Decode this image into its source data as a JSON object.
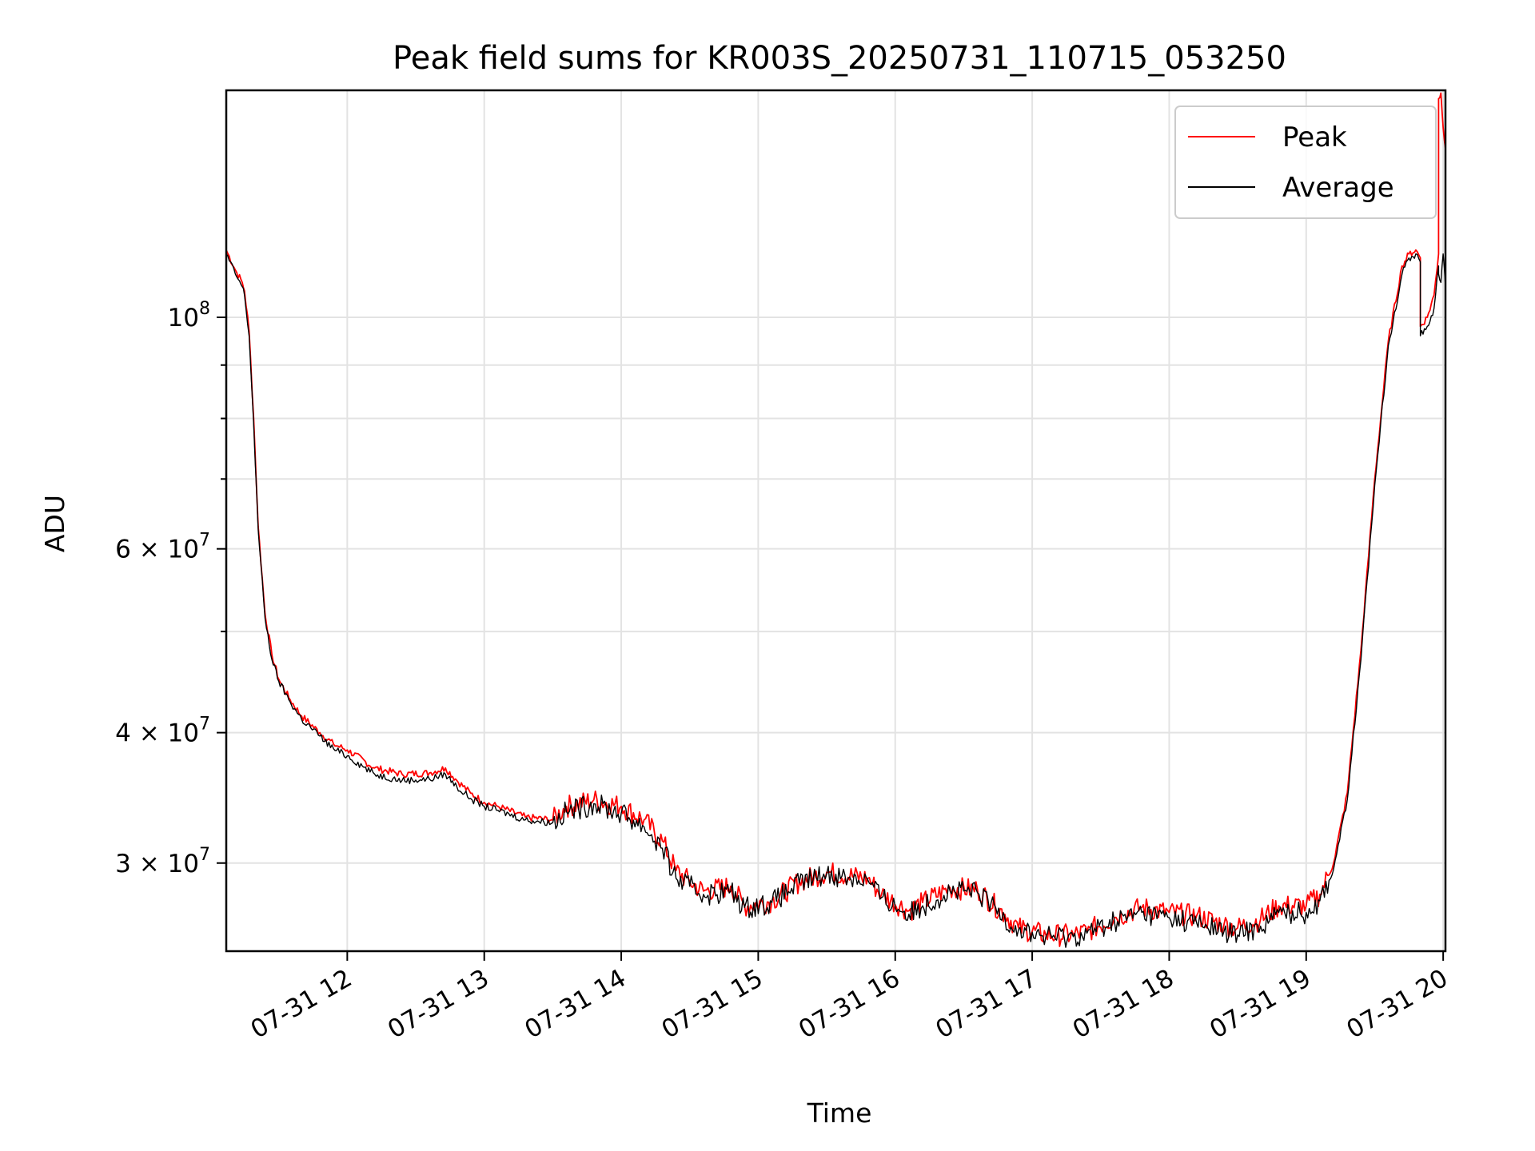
{
  "chart_data": {
    "type": "line",
    "title": "Peak field sums for KR003S_20250731_110715_053250",
    "xlabel": "Time",
    "ylabel": "ADU",
    "yscale": "log",
    "xlim": [
      "07-31 11:07",
      "07-31 20:01"
    ],
    "ylim": [
      24700000,
      165000000
    ],
    "grid": true,
    "legend_position": "top-right",
    "x_ticks": [
      "07-31 12",
      "07-31 13",
      "07-31 14",
      "07-31 15",
      "07-31 16",
      "07-31 17",
      "07-31 18",
      "07-31 19",
      "07-31 20"
    ],
    "y_ticks": [
      {
        "value": 100000000,
        "base": "10",
        "exp": "8"
      },
      {
        "value": 60000000,
        "base": "6 × 10",
        "exp": "7"
      },
      {
        "value": 40000000,
        "base": "4 × 10",
        "exp": "7"
      },
      {
        "value": 30000000,
        "base": "3 × 10",
        "exp": "7"
      }
    ],
    "y_minor_ticks": [
      50000000,
      70000000,
      80000000,
      90000000
    ],
    "series": [
      {
        "name": "Peak",
        "color": "#ff0000",
        "x": [
          "07-31 11:07",
          "07-31 11:11",
          "07-31 11:14",
          "07-31 11:15",
          "07-31 11:17",
          "07-31 11:19",
          "07-31 11:21",
          "07-31 11:24",
          "07-31 11:27",
          "07-31 11:30",
          "07-31 11:35",
          "07-31 11:40",
          "07-31 11:48",
          "07-31 11:54",
          "07-31 12:00",
          "07-31 12:12",
          "07-31 12:24",
          "07-31 12:36",
          "07-31 12:43",
          "07-31 12:48",
          "07-31 12:54",
          "07-31 13:00",
          "07-31 13:06",
          "07-31 13:18",
          "07-31 13:30",
          "07-31 13:36",
          "07-31 13:48",
          "07-31 14:00",
          "07-31 14:10",
          "07-31 14:18",
          "07-31 14:24",
          "07-31 14:30",
          "07-31 14:36",
          "07-31 14:48",
          "07-31 14:54",
          "07-31 15:06",
          "07-31 15:18",
          "07-31 15:30",
          "07-31 15:48",
          "07-31 15:54",
          "07-31 16:06",
          "07-31 16:12",
          "07-31 16:24",
          "07-31 16:36",
          "07-31 16:48",
          "07-31 16:54",
          "07-31 17:06",
          "07-31 17:18",
          "07-31 17:24",
          "07-31 17:36",
          "07-31 17:48",
          "07-31 18:00",
          "07-31 18:12",
          "07-31 18:24",
          "07-31 18:30",
          "07-31 18:40",
          "07-31 18:48",
          "07-31 19:00",
          "07-31 19:06",
          "07-31 19:12",
          "07-31 19:18",
          "07-31 19:24",
          "07-31 19:30",
          "07-31 19:36",
          "07-31 19:42",
          "07-31 19:45",
          "07-31 19:48",
          "07-31 19:50",
          "07-31 19:50",
          "07-31 19:53",
          "07-31 19:56",
          "07-31 19:58",
          "07-31 19:58",
          "07-31 19:59",
          "07-31 20:00",
          "07-31 20:01"
        ],
        "values": [
          116000000,
          111000000,
          108000000,
          106000000,
          97000000,
          80000000,
          63000000,
          52000000,
          47500000,
          45000000,
          43000000,
          41500000,
          40000000,
          39000000,
          38500000,
          37000000,
          36500000,
          36600000,
          37000000,
          36000000,
          35000000,
          34300000,
          34000000,
          33200000,
          33000000,
          34000000,
          34500000,
          34000000,
          33000000,
          31500000,
          29500000,
          28800000,
          28200000,
          28500000,
          27300000,
          27600000,
          28800000,
          29400000,
          29000000,
          28000000,
          27000000,
          27500000,
          28400000,
          28300000,
          26800000,
          26000000,
          25600000,
          25600000,
          25800000,
          26600000,
          27200000,
          26900000,
          26700000,
          26200000,
          26000000,
          26500000,
          27300000,
          27300000,
          28000000,
          30000000,
          35000000,
          48000000,
          70000000,
          95000000,
          112000000,
          115000000,
          116000000,
          114000000,
          98000000,
          100000000,
          105000000,
          115000000,
          162000000,
          164000000,
          152000000,
          145000000
        ]
      },
      {
        "name": "Average",
        "color": "#000000",
        "x": [
          "07-31 11:07",
          "07-31 11:11",
          "07-31 11:14",
          "07-31 11:15",
          "07-31 11:17",
          "07-31 11:19",
          "07-31 11:21",
          "07-31 11:24",
          "07-31 11:27",
          "07-31 11:30",
          "07-31 11:35",
          "07-31 11:40",
          "07-31 11:48",
          "07-31 11:54",
          "07-31 12:00",
          "07-31 12:12",
          "07-31 12:24",
          "07-31 12:36",
          "07-31 12:43",
          "07-31 12:48",
          "07-31 12:54",
          "07-31 13:00",
          "07-31 13:06",
          "07-31 13:18",
          "07-31 13:30",
          "07-31 13:36",
          "07-31 13:48",
          "07-31 14:00",
          "07-31 14:10",
          "07-31 14:18",
          "07-31 14:24",
          "07-31 14:30",
          "07-31 14:36",
          "07-31 14:48",
          "07-31 14:54",
          "07-31 15:06",
          "07-31 15:18",
          "07-31 15:30",
          "07-31 15:48",
          "07-31 15:54",
          "07-31 16:06",
          "07-31 16:12",
          "07-31 16:24",
          "07-31 16:36",
          "07-31 16:48",
          "07-31 16:54",
          "07-31 17:06",
          "07-31 17:18",
          "07-31 17:24",
          "07-31 17:36",
          "07-31 17:48",
          "07-31 18:00",
          "07-31 18:12",
          "07-31 18:24",
          "07-31 18:30",
          "07-31 18:40",
          "07-31 18:48",
          "07-31 19:00",
          "07-31 19:06",
          "07-31 19:12",
          "07-31 19:18",
          "07-31 19:24",
          "07-31 19:30",
          "07-31 19:36",
          "07-31 19:42",
          "07-31 19:45",
          "07-31 19:48",
          "07-31 19:50",
          "07-31 19:50",
          "07-31 19:53",
          "07-31 19:56",
          "07-31 19:58",
          "07-31 19:58",
          "07-31 19:59",
          "07-31 20:00",
          "07-31 20:01"
        ],
        "values": [
          115000000,
          110000000,
          107000000,
          105000000,
          96000000,
          79000000,
          62500000,
          51500000,
          47000000,
          44800000,
          42800000,
          41200000,
          39700000,
          38600000,
          38000000,
          36500000,
          36000000,
          36100000,
          36500000,
          35500000,
          34600000,
          34000000,
          33700000,
          33000000,
          32800000,
          33600000,
          34200000,
          33500000,
          32500000,
          31000000,
          29000000,
          28500000,
          28000000,
          28200000,
          27200000,
          27500000,
          28700000,
          29300000,
          28900000,
          27800000,
          26800000,
          27300000,
          28200000,
          28100000,
          26600000,
          25900000,
          25500000,
          25500000,
          25700000,
          26400000,
          26900000,
          26600000,
          26300000,
          25800000,
          25600000,
          26100000,
          26900000,
          26900000,
          27600000,
          29600000,
          34500000,
          47000000,
          69000000,
          94000000,
          110000000,
          114000000,
          115000000,
          113000000,
          96000000,
          98000000,
          102000000,
          112000000,
          110000000,
          108000000,
          115000000,
          107000000
        ]
      }
    ]
  }
}
